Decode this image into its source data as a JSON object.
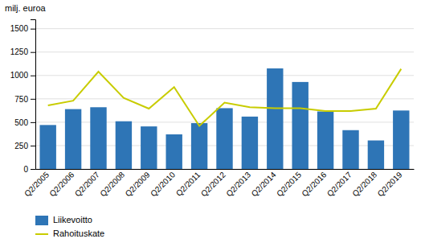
{
  "chart_data": {
    "type": "bar",
    "ylabel": "milj. euroa",
    "categories": [
      "Q2/2005",
      "Q2/2006",
      "Q2/2007",
      "Q2/2008",
      "Q2/2009",
      "Q2/2010",
      "Q2/2011",
      "Q2/2012",
      "Q2/2013",
      "Q2/2014",
      "Q2/2015",
      "Q2/2016",
      "Q2/2017",
      "Q2/2018",
      "Q2/2019"
    ],
    "series": [
      {
        "name": "Liikevoitto",
        "type": "bar",
        "color": "#2e75b6",
        "values": [
          470,
          640,
          660,
          510,
          455,
          370,
          490,
          650,
          560,
          1075,
          930,
          615,
          415,
          305,
          625
        ]
      },
      {
        "name": "Rahoituskate",
        "type": "line",
        "color": "#c8cc00",
        "values": [
          680,
          730,
          1040,
          760,
          645,
          875,
          460,
          710,
          660,
          650,
          650,
          620,
          620,
          645,
          1070
        ]
      }
    ],
    "ylim": [
      0,
      1600
    ],
    "yticks": [
      0,
      250,
      500,
      750,
      1000,
      1250,
      1500
    ],
    "grid": true,
    "legend": "bottom"
  }
}
